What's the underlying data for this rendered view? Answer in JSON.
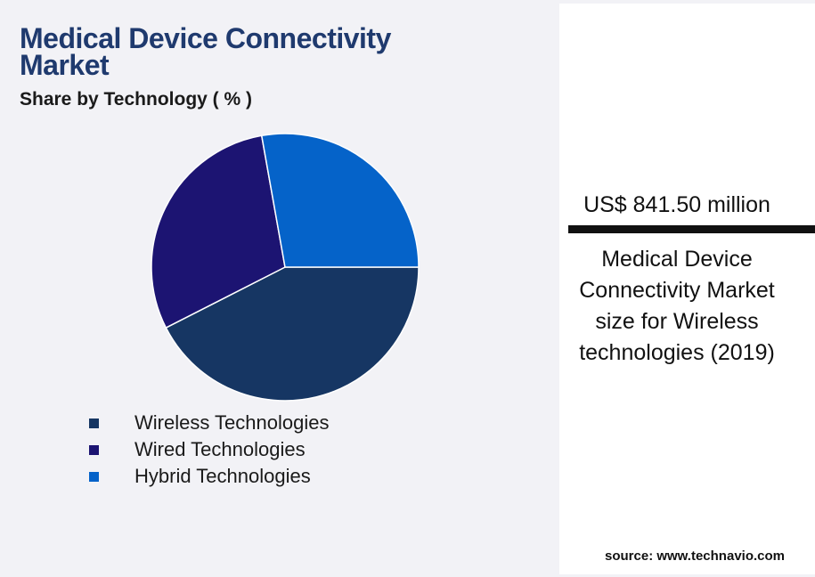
{
  "chart_data": {
    "type": "pie",
    "title": "Medical Device Connectivity Market",
    "subtitle": "Share by Technology ( % )",
    "categories": [
      "Wireless Technologies",
      "Wired Technologies",
      "Hybrid Technologies"
    ],
    "values": [
      42.5,
      29.7,
      27.8
    ],
    "colors": [
      "#163663",
      "#1c1472",
      "#0563c9"
    ]
  },
  "highlight": {
    "value": "US$ 841.50 million",
    "description": "Medical Device Connectivity Market size for Wireless technologies (2019)"
  },
  "source": "source: www.technavio.com"
}
